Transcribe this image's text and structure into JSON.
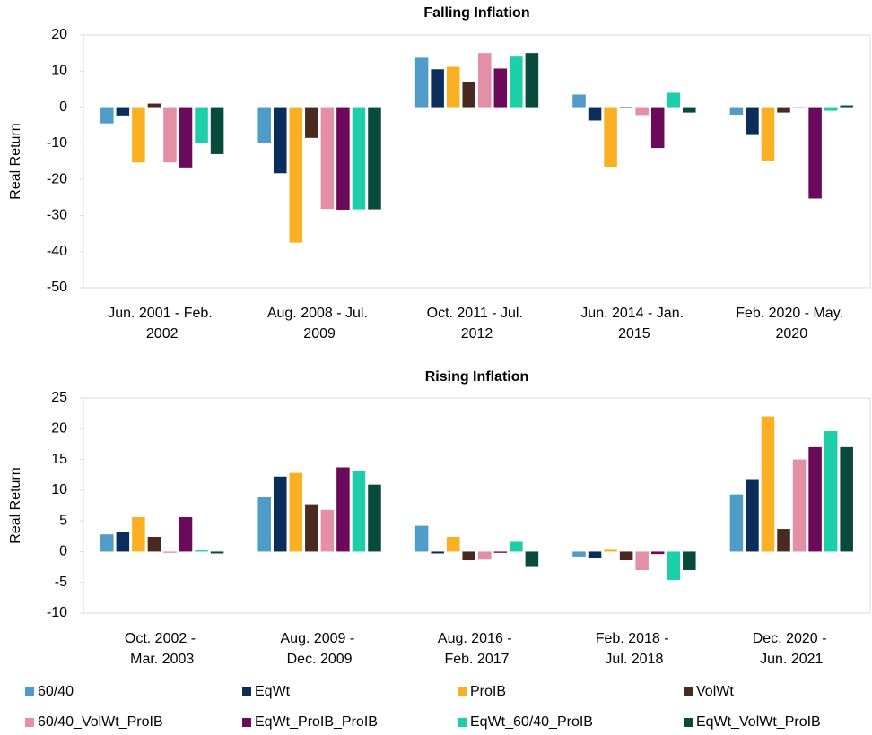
{
  "chart_data": [
    {
      "type": "bar",
      "title": "Falling Inflation",
      "y_label": "Real Return",
      "categories": [
        "Jun. 2001 - Feb. 2002",
        "Aug. 2008 - Jul. 2009",
        "Oct. 2011 - Jul. 2012",
        "Jun. 2014 - Jan. 2015",
        "Feb. 2020 - May. 2020"
      ],
      "ylim": [
        -50,
        20
      ],
      "yticks": [
        -50,
        -40,
        -30,
        -20,
        -10,
        0,
        10,
        20
      ],
      "series": [
        {
          "name": "60/40",
          "color": "#4f9cc8",
          "values": [
            -4.5,
            -9.8,
            13.7,
            3.5,
            -2.1
          ]
        },
        {
          "name": "EqWt",
          "color": "#0b2d5b",
          "values": [
            -2.3,
            -18.3,
            10.5,
            -3.7,
            -7.7
          ]
        },
        {
          "name": "ProIB",
          "color": "#fbb023",
          "values": [
            -15.3,
            -37.5,
            11.2,
            -16.5,
            -15.0
          ]
        },
        {
          "name": "VolWt",
          "color": "#4a2a1e",
          "values": [
            1.0,
            -8.5,
            7.0,
            -0.2,
            -1.5
          ]
        },
        {
          "name": "60/40_VolWt_ProIB",
          "color": "#e38fa8",
          "values": [
            -15.3,
            -28.2,
            15.0,
            -2.2,
            -0.3
          ]
        },
        {
          "name": "EqWt_ProIB_ProIB",
          "color": "#6b0a5a",
          "values": [
            -16.7,
            -28.4,
            10.7,
            -11.3,
            -25.3
          ]
        },
        {
          "name": "EqWt_60/40_ProIB",
          "color": "#1ccfa8",
          "values": [
            -10.0,
            -28.3,
            14.0,
            4.0,
            -1.0
          ]
        },
        {
          "name": "EqWt_VolWt_ProIB",
          "color": "#084b3c",
          "values": [
            -13.0,
            -28.3,
            15.0,
            -1.5,
            0.5
          ]
        }
      ]
    },
    {
      "type": "bar",
      "title": "Rising Inflation",
      "y_label": "Real Return",
      "categories": [
        "Oct. 2002 - Mar. 2003",
        "Aug. 2009 - Dec. 2009",
        "Aug. 2016 - Feb. 2017",
        "Feb. 2018 - Jul. 2018",
        "Dec. 2020 - Jun. 2021"
      ],
      "ylim": [
        -10,
        25
      ],
      "yticks": [
        -10,
        -5,
        0,
        5,
        10,
        15,
        20,
        25
      ],
      "series": [
        {
          "name": "60/40",
          "color": "#4f9cc8",
          "values": [
            2.8,
            8.9,
            4.2,
            -0.8,
            9.3
          ]
        },
        {
          "name": "EqWt",
          "color": "#0b2d5b",
          "values": [
            3.2,
            12.2,
            -0.3,
            -1.0,
            11.8
          ]
        },
        {
          "name": "ProIB",
          "color": "#fbb023",
          "values": [
            5.6,
            12.8,
            2.4,
            0.3,
            22.0
          ]
        },
        {
          "name": "VolWt",
          "color": "#4a2a1e",
          "values": [
            2.4,
            7.7,
            -1.4,
            -1.4,
            3.7
          ]
        },
        {
          "name": "60/40_VolWt_ProIB",
          "color": "#e38fa8",
          "values": [
            -0.2,
            6.8,
            -1.3,
            -3.0,
            15.0
          ]
        },
        {
          "name": "EqWt_ProIB_ProIB",
          "color": "#6b0a5a",
          "values": [
            5.6,
            13.7,
            -0.2,
            -0.4,
            17.0
          ]
        },
        {
          "name": "EqWt_60/40_ProIB",
          "color": "#1ccfa8",
          "values": [
            0.2,
            13.1,
            1.6,
            -4.6,
            19.6
          ]
        },
        {
          "name": "EqWt_VolWt_ProIB",
          "color": "#084b3c",
          "values": [
            -0.3,
            10.9,
            -2.5,
            -3.0,
            17.0
          ]
        }
      ]
    }
  ]
}
